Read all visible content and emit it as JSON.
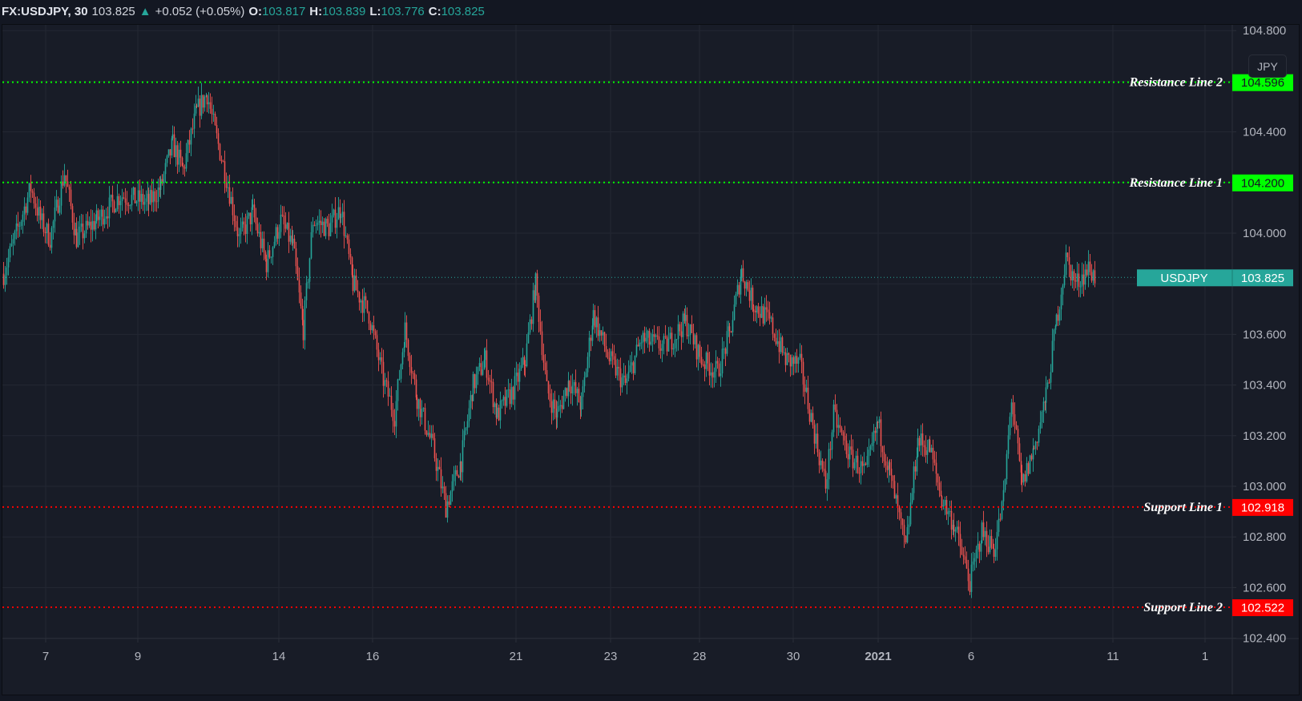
{
  "legend": {
    "symbol": "FX:USDJPY, 30",
    "last": "103.825",
    "change": "+0.052 (+0.05%)",
    "open_label": "O:",
    "open": "103.817",
    "high_label": "H:",
    "high": "103.839",
    "low_label": "L:",
    "low": "103.776",
    "close_label": "C:",
    "close": "103.825"
  },
  "price_axis": {
    "currency_badge": "JPY",
    "ticks": [
      "104.800",
      "104.400",
      "104.000",
      "103.600",
      "103.400",
      "103.200",
      "103.000",
      "102.800",
      "102.600",
      "102.400"
    ],
    "tick_values": [
      104.8,
      104.4,
      104.0,
      103.6,
      103.4,
      103.2,
      103.0,
      102.8,
      102.6,
      102.4
    ]
  },
  "time_axis": {
    "labels": [
      {
        "text": "7",
        "x": 57,
        "bold": false
      },
      {
        "text": "9",
        "x": 172,
        "bold": false
      },
      {
        "text": "14",
        "x": 348,
        "bold": false
      },
      {
        "text": "16",
        "x": 465,
        "bold": false
      },
      {
        "text": "21",
        "x": 644,
        "bold": false
      },
      {
        "text": "23",
        "x": 762,
        "bold": false
      },
      {
        "text": "28",
        "x": 873,
        "bold": false
      },
      {
        "text": "30",
        "x": 990,
        "bold": false
      },
      {
        "text": "2021",
        "x": 1096,
        "bold": true
      },
      {
        "text": "6",
        "x": 1212,
        "bold": false
      },
      {
        "text": "11",
        "x": 1389,
        "bold": false
      },
      {
        "text": "1",
        "x": 1504,
        "bold": false
      }
    ]
  },
  "levels": [
    {
      "label": "Resistance Line 2",
      "value": "104.596",
      "price": 104.596,
      "color": "#00ff00",
      "text_color": "#131722"
    },
    {
      "label": "Resistance Line 1",
      "value": "104.200",
      "price": 104.2,
      "color": "#00ff00",
      "text_color": "#131722"
    },
    {
      "label": "Support Line 1",
      "value": "102.918",
      "price": 102.918,
      "color": "#ff0000",
      "text_color": "#ffffff"
    },
    {
      "label": "Support Line 2",
      "value": "102.522",
      "price": 102.522,
      "color": "#ff0000",
      "text_color": "#ffffff"
    }
  ],
  "last_price_tag": {
    "symbol": "USDJPY",
    "value": "103.825",
    "price": 103.825,
    "color": "#26a69a"
  },
  "colors": {
    "up": "#26a69a",
    "down": "#ef5350",
    "grid": "#232733",
    "background": "#181c27"
  },
  "chart_data": {
    "type": "candlestick",
    "title": "FX:USDJPY, 30",
    "timeframe": "30 min",
    "xlabel": "",
    "ylabel": "JPY",
    "ylim": [
      102.35,
      104.85
    ],
    "grid": true,
    "x_ticks": [
      "7",
      "9",
      "14",
      "16",
      "21",
      "23",
      "28",
      "30",
      "2021",
      "6",
      "11",
      "1"
    ],
    "y_ticks": [
      104.8,
      104.6,
      104.4,
      104.2,
      104.0,
      103.8,
      103.6,
      103.4,
      103.2,
      103.0,
      102.8,
      102.6,
      102.4
    ],
    "path_waypoints": [
      {
        "x": 4,
        "p": 103.84
      },
      {
        "x": 20,
        "p": 104.0
      },
      {
        "x": 38,
        "p": 104.18
      },
      {
        "x": 50,
        "p": 104.05
      },
      {
        "x": 62,
        "p": 103.98
      },
      {
        "x": 80,
        "p": 104.24
      },
      {
        "x": 95,
        "p": 103.98
      },
      {
        "x": 120,
        "p": 104.05
      },
      {
        "x": 150,
        "p": 104.15
      },
      {
        "x": 185,
        "p": 104.12
      },
      {
        "x": 200,
        "p": 104.18
      },
      {
        "x": 215,
        "p": 104.35
      },
      {
        "x": 228,
        "p": 104.25
      },
      {
        "x": 245,
        "p": 104.48
      },
      {
        "x": 258,
        "p": 104.55
      },
      {
        "x": 268,
        "p": 104.4
      },
      {
        "x": 282,
        "p": 104.22
      },
      {
        "x": 298,
        "p": 103.98
      },
      {
        "x": 315,
        "p": 104.08
      },
      {
        "x": 332,
        "p": 103.88
      },
      {
        "x": 350,
        "p": 104.05
      },
      {
        "x": 365,
        "p": 103.95
      },
      {
        "x": 378,
        "p": 103.62
      },
      {
        "x": 390,
        "p": 104.05
      },
      {
        "x": 410,
        "p": 104.02
      },
      {
        "x": 425,
        "p": 104.1
      },
      {
        "x": 440,
        "p": 103.8
      },
      {
        "x": 460,
        "p": 103.68
      },
      {
        "x": 478,
        "p": 103.42
      },
      {
        "x": 492,
        "p": 103.28
      },
      {
        "x": 505,
        "p": 103.62
      },
      {
        "x": 520,
        "p": 103.35
      },
      {
        "x": 540,
        "p": 103.15
      },
      {
        "x": 556,
        "p": 102.92
      },
      {
        "x": 575,
        "p": 103.1
      },
      {
        "x": 590,
        "p": 103.4
      },
      {
        "x": 605,
        "p": 103.5
      },
      {
        "x": 620,
        "p": 103.28
      },
      {
        "x": 640,
        "p": 103.38
      },
      {
        "x": 655,
        "p": 103.5
      },
      {
        "x": 668,
        "p": 103.8
      },
      {
        "x": 682,
        "p": 103.38
      },
      {
        "x": 695,
        "p": 103.28
      },
      {
        "x": 710,
        "p": 103.42
      },
      {
        "x": 725,
        "p": 103.32
      },
      {
        "x": 740,
        "p": 103.68
      },
      {
        "x": 760,
        "p": 103.5
      },
      {
        "x": 780,
        "p": 103.4
      },
      {
        "x": 800,
        "p": 103.58
      },
      {
        "x": 830,
        "p": 103.55
      },
      {
        "x": 855,
        "p": 103.65
      },
      {
        "x": 875,
        "p": 103.5
      },
      {
        "x": 895,
        "p": 103.45
      },
      {
        "x": 910,
        "p": 103.6
      },
      {
        "x": 925,
        "p": 103.85
      },
      {
        "x": 940,
        "p": 103.72
      },
      {
        "x": 960,
        "p": 103.65
      },
      {
        "x": 980,
        "p": 103.5
      },
      {
        "x": 998,
        "p": 103.48
      },
      {
        "x": 1010,
        "p": 103.3
      },
      {
        "x": 1030,
        "p": 103.0
      },
      {
        "x": 1040,
        "p": 103.28
      },
      {
        "x": 1060,
        "p": 103.12
      },
      {
        "x": 1080,
        "p": 103.05
      },
      {
        "x": 1095,
        "p": 103.25
      },
      {
        "x": 1110,
        "p": 103.05
      },
      {
        "x": 1130,
        "p": 102.75
      },
      {
        "x": 1145,
        "p": 103.18
      },
      {
        "x": 1160,
        "p": 103.15
      },
      {
        "x": 1175,
        "p": 102.95
      },
      {
        "x": 1190,
        "p": 102.85
      },
      {
        "x": 1210,
        "p": 102.62
      },
      {
        "x": 1225,
        "p": 102.82
      },
      {
        "x": 1240,
        "p": 102.75
      },
      {
        "x": 1252,
        "p": 102.95
      },
      {
        "x": 1262,
        "p": 103.35
      },
      {
        "x": 1275,
        "p": 103.0
      },
      {
        "x": 1290,
        "p": 103.15
      },
      {
        "x": 1305,
        "p": 103.35
      },
      {
        "x": 1318,
        "p": 103.65
      },
      {
        "x": 1330,
        "p": 103.9
      },
      {
        "x": 1342,
        "p": 103.8
      },
      {
        "x": 1358,
        "p": 103.86
      },
      {
        "x": 1368,
        "p": 103.82
      }
    ]
  }
}
